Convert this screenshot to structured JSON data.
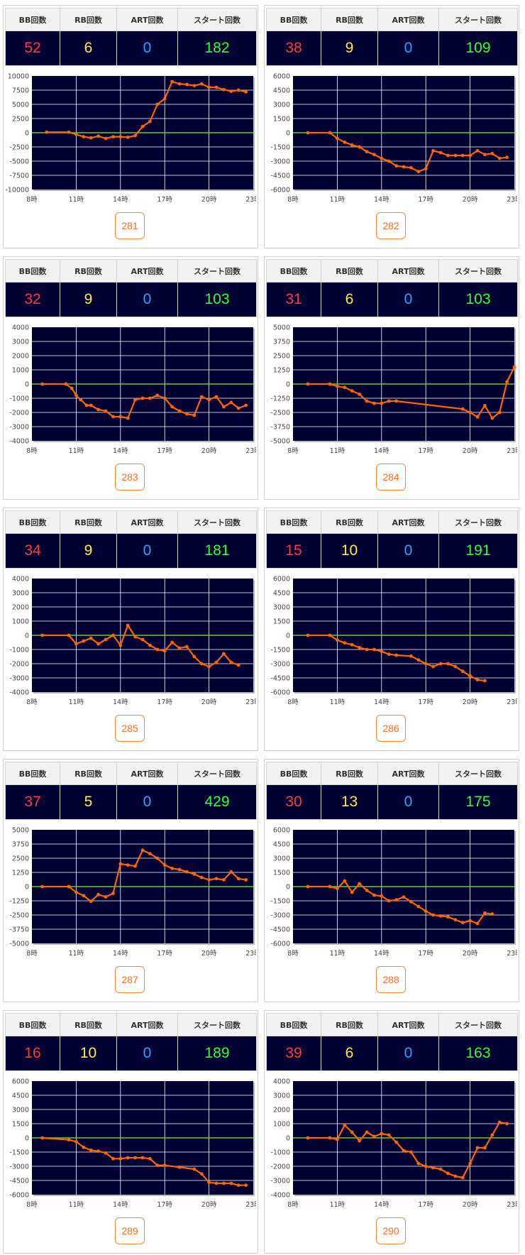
{
  "headers": {
    "bb": "BB回数",
    "rb": "RB回数",
    "art": "ART回数",
    "start": "スタート回数"
  },
  "x_tick_labels": [
    "8時",
    "11時",
    "14時",
    "17時",
    "20時",
    "23時"
  ],
  "cards": [
    {
      "bb": "52",
      "rb": "6",
      "art": "0",
      "start": "182",
      "machine": "281"
    },
    {
      "bb": "38",
      "rb": "9",
      "art": "0",
      "start": "109",
      "machine": "282"
    },
    {
      "bb": "32",
      "rb": "9",
      "art": "0",
      "start": "103",
      "machine": "283"
    },
    {
      "bb": "31",
      "rb": "6",
      "art": "0",
      "start": "103",
      "machine": "284"
    },
    {
      "bb": "34",
      "rb": "9",
      "art": "0",
      "start": "181",
      "machine": "285"
    },
    {
      "bb": "15",
      "rb": "10",
      "art": "0",
      "start": "191",
      "machine": "286"
    },
    {
      "bb": "37",
      "rb": "5",
      "art": "0",
      "start": "429",
      "machine": "287"
    },
    {
      "bb": "30",
      "rb": "13",
      "art": "0",
      "start": "175",
      "machine": "288"
    },
    {
      "bb": "16",
      "rb": "10",
      "art": "0",
      "start": "189",
      "machine": "289"
    },
    {
      "bb": "39",
      "rb": "6",
      "art": "0",
      "start": "163",
      "machine": "290"
    }
  ],
  "colors": {
    "plot_bg": "#000033",
    "grid": "#ffffff",
    "zero_line": "#66cc33",
    "series": "#ff6600"
  },
  "chart_data": [
    {
      "type": "line",
      "xlim": [
        8,
        23
      ],
      "ylim": [
        -10000,
        10000
      ],
      "yticks": [
        "10000",
        "7500",
        "5000",
        "2500",
        "0",
        "-2500",
        "-5000",
        "-7500",
        "-10000"
      ],
      "x": [
        9,
        10.5,
        11,
        11.5,
        12,
        12.5,
        13,
        13.5,
        14,
        14.5,
        15,
        15.5,
        16,
        16.5,
        17,
        17.5,
        18,
        18.5,
        19,
        19.5,
        20,
        20.5,
        21,
        21.5,
        22,
        22.5
      ],
      "y": [
        100,
        100,
        -300,
        -700,
        -900,
        -600,
        -1000,
        -700,
        -700,
        -800,
        -500,
        1100,
        2000,
        5000,
        6000,
        9000,
        8600,
        8500,
        8300,
        8600,
        8000,
        8000,
        7600,
        7300,
        7500,
        7200
      ]
    },
    {
      "type": "line",
      "xlim": [
        8,
        23
      ],
      "ylim": [
        -6000,
        6000
      ],
      "yticks": [
        "6000",
        "4500",
        "3000",
        "1500",
        "0",
        "-1500",
        "-3000",
        "-4500",
        "-6000"
      ],
      "x": [
        9,
        10.5,
        11,
        11.5,
        12,
        12.5,
        13,
        13.5,
        14,
        14.5,
        15,
        15.5,
        16,
        16.5,
        17,
        17.5,
        18,
        18.5,
        19,
        19.5,
        20,
        20.5,
        21,
        21.5,
        22,
        22.5
      ],
      "y": [
        0,
        0,
        -600,
        -1000,
        -1300,
        -1500,
        -2000,
        -2300,
        -2700,
        -3000,
        -3500,
        -3600,
        -3700,
        -4100,
        -3800,
        -1900,
        -2100,
        -2400,
        -2400,
        -2400,
        -2400,
        -1900,
        -2300,
        -2200,
        -2700,
        -2600
      ]
    },
    {
      "type": "line",
      "xlim": [
        8,
        23
      ],
      "ylim": [
        -4000,
        4000
      ],
      "yticks": [
        "4000",
        "3000",
        "2000",
        "1000",
        "0",
        "-1000",
        "-2000",
        "-3000",
        "-4000"
      ],
      "x": [
        8.7,
        10.3,
        10.7,
        11,
        11.3,
        11.7,
        12,
        12.5,
        13,
        13.5,
        14,
        14.5,
        15,
        15.5,
        16,
        16.5,
        17,
        17.5,
        18,
        18.5,
        19,
        19.5,
        20,
        20.5,
        21,
        21.5,
        22,
        22.5
      ],
      "y": [
        0,
        0,
        -300,
        -800,
        -1100,
        -1500,
        -1500,
        -1800,
        -1900,
        -2300,
        -2300,
        -2400,
        -1100,
        -1000,
        -1000,
        -800,
        -1000,
        -1600,
        -1900,
        -2100,
        -2200,
        -900,
        -1100,
        -900,
        -1600,
        -1300,
        -1700,
        -1500
      ]
    },
    {
      "type": "line",
      "xlim": [
        8,
        23
      ],
      "ylim": [
        -5000,
        5000
      ],
      "yticks": [
        "5000",
        "3750",
        "2500",
        "1250",
        "0",
        "-1250",
        "-2500",
        "-3750",
        "-5000"
      ],
      "x": [
        9,
        10.5,
        11,
        11.5,
        12,
        12.5,
        13,
        13.5,
        14,
        14.5,
        15,
        19.5,
        20,
        20.5,
        21,
        21.5,
        22,
        22.5,
        23
      ],
      "y": [
        0,
        0,
        -200,
        -300,
        -600,
        -900,
        -1500,
        -1700,
        -1700,
        -1500,
        -1500,
        -2200,
        -2500,
        -2900,
        -1900,
        -3000,
        -2500,
        200,
        1500
      ]
    },
    {
      "type": "line",
      "xlim": [
        8,
        23
      ],
      "ylim": [
        -4000,
        4000
      ],
      "yticks": [
        "4000",
        "3000",
        "2000",
        "1000",
        "0",
        "-1000",
        "-2000",
        "-3000",
        "-4000"
      ],
      "x": [
        8.7,
        10.5,
        11,
        11.5,
        12,
        12.5,
        13,
        13.5,
        14,
        14.5,
        15,
        15.5,
        16,
        16.5,
        17,
        17.5,
        18,
        18.5,
        19,
        19.5,
        20,
        20.5,
        21,
        21.5,
        22
      ],
      "y": [
        0,
        0,
        -600,
        -400,
        -200,
        -600,
        -300,
        0,
        -700,
        700,
        -100,
        -300,
        -700,
        -1000,
        -1100,
        -500,
        -900,
        -800,
        -1500,
        -2000,
        -2200,
        -1900,
        -1300,
        -1900,
        -2100
      ]
    },
    {
      "type": "line",
      "xlim": [
        8,
        23
      ],
      "ylim": [
        -6000,
        6000
      ],
      "yticks": [
        "6000",
        "4500",
        "3000",
        "1500",
        "0",
        "-1500",
        "-3000",
        "-4500",
        "-6000"
      ],
      "x": [
        9,
        10.5,
        11,
        11.5,
        12,
        12.5,
        13,
        13.5,
        14,
        14.5,
        15,
        16,
        16.5,
        17,
        17.5,
        18,
        18.5,
        19,
        19.5,
        20,
        20.5,
        21
      ],
      "y": [
        0,
        0,
        -500,
        -800,
        -1000,
        -1300,
        -1500,
        -1500,
        -1700,
        -2000,
        -2100,
        -2200,
        -2600,
        -3000,
        -3300,
        -3000,
        -3000,
        -3300,
        -3800,
        -4300,
        -4700,
        -4800
      ]
    },
    {
      "type": "line",
      "xlim": [
        8,
        23
      ],
      "ylim": [
        -5000,
        5000
      ],
      "yticks": [
        "5000",
        "3750",
        "2500",
        "1250",
        "0",
        "-1250",
        "-2500",
        "-3750",
        "-5000"
      ],
      "x": [
        8.7,
        10.5,
        11,
        11.5,
        12,
        12.5,
        13,
        13.5,
        14,
        14.5,
        15,
        15.5,
        16,
        16.5,
        17,
        17.5,
        18,
        18.5,
        19,
        19.5,
        20,
        20.5,
        21,
        21.5,
        22,
        22.5
      ],
      "y": [
        0,
        0,
        -500,
        -800,
        -1300,
        -700,
        -900,
        -600,
        2000,
        1900,
        1800,
        3200,
        2900,
        2500,
        1900,
        1600,
        1500,
        1300,
        1100,
        800,
        600,
        700,
        600,
        1300,
        700,
        600
      ]
    },
    {
      "type": "line",
      "xlim": [
        8,
        23
      ],
      "ylim": [
        -6000,
        6000
      ],
      "yticks": [
        "6000",
        "4500",
        "3000",
        "1500",
        "0",
        "-1500",
        "-3000",
        "-4500",
        "-6000"
      ],
      "x": [
        9,
        10.5,
        11,
        11.5,
        12,
        12.5,
        13,
        13.5,
        14,
        14.5,
        15,
        15.5,
        16,
        16.5,
        17,
        17.5,
        18,
        18.5,
        19,
        19.5,
        20,
        20.5,
        21,
        21.5
      ],
      "y": [
        0,
        0,
        -200,
        600,
        -600,
        300,
        -400,
        -900,
        -1000,
        -1500,
        -1400,
        -1100,
        -1600,
        -2100,
        -2600,
        -3000,
        -3100,
        -3200,
        -3500,
        -3800,
        -3600,
        -3900,
        -2800,
        -2900
      ]
    },
    {
      "type": "line",
      "xlim": [
        8,
        23
      ],
      "ylim": [
        -6000,
        6000
      ],
      "yticks": [
        "6000",
        "4500",
        "3000",
        "1500",
        "0",
        "-1500",
        "-3000",
        "-4500",
        "-6000"
      ],
      "x": [
        8.7,
        10.5,
        11,
        11.5,
        12,
        12.5,
        13,
        13.5,
        14,
        14.5,
        15,
        15.5,
        16,
        16.5,
        17,
        18,
        19,
        19.5,
        20,
        20.5,
        21,
        21.5,
        22,
        22.5
      ],
      "y": [
        0,
        -200,
        -400,
        -1000,
        -1300,
        -1400,
        -1600,
        -2200,
        -2200,
        -2100,
        -2100,
        -2100,
        -2200,
        -2900,
        -2900,
        -3100,
        -3300,
        -3800,
        -4700,
        -4800,
        -4800,
        -4800,
        -5000,
        -5000
      ]
    },
    {
      "type": "line",
      "xlim": [
        8,
        23
      ],
      "ylim": [
        -4000,
        4000
      ],
      "yticks": [
        "4000",
        "3000",
        "2000",
        "1000",
        "0",
        "-1000",
        "-2000",
        "-3000",
        "-4000"
      ],
      "x": [
        9,
        10.5,
        11,
        11.5,
        12,
        12.5,
        13,
        13.5,
        14,
        14.5,
        15,
        15.5,
        16,
        16.5,
        17,
        17.5,
        18,
        18.5,
        19,
        19.5,
        20,
        20.5,
        21,
        21.5,
        22,
        22.5
      ],
      "y": [
        0,
        0,
        -100,
        900,
        400,
        -200,
        400,
        100,
        300,
        200,
        -300,
        -900,
        -1000,
        -1800,
        -2000,
        -2100,
        -2200,
        -2500,
        -2700,
        -2800,
        -1800,
        -700,
        -700,
        200,
        1100,
        1000
      ]
    }
  ]
}
